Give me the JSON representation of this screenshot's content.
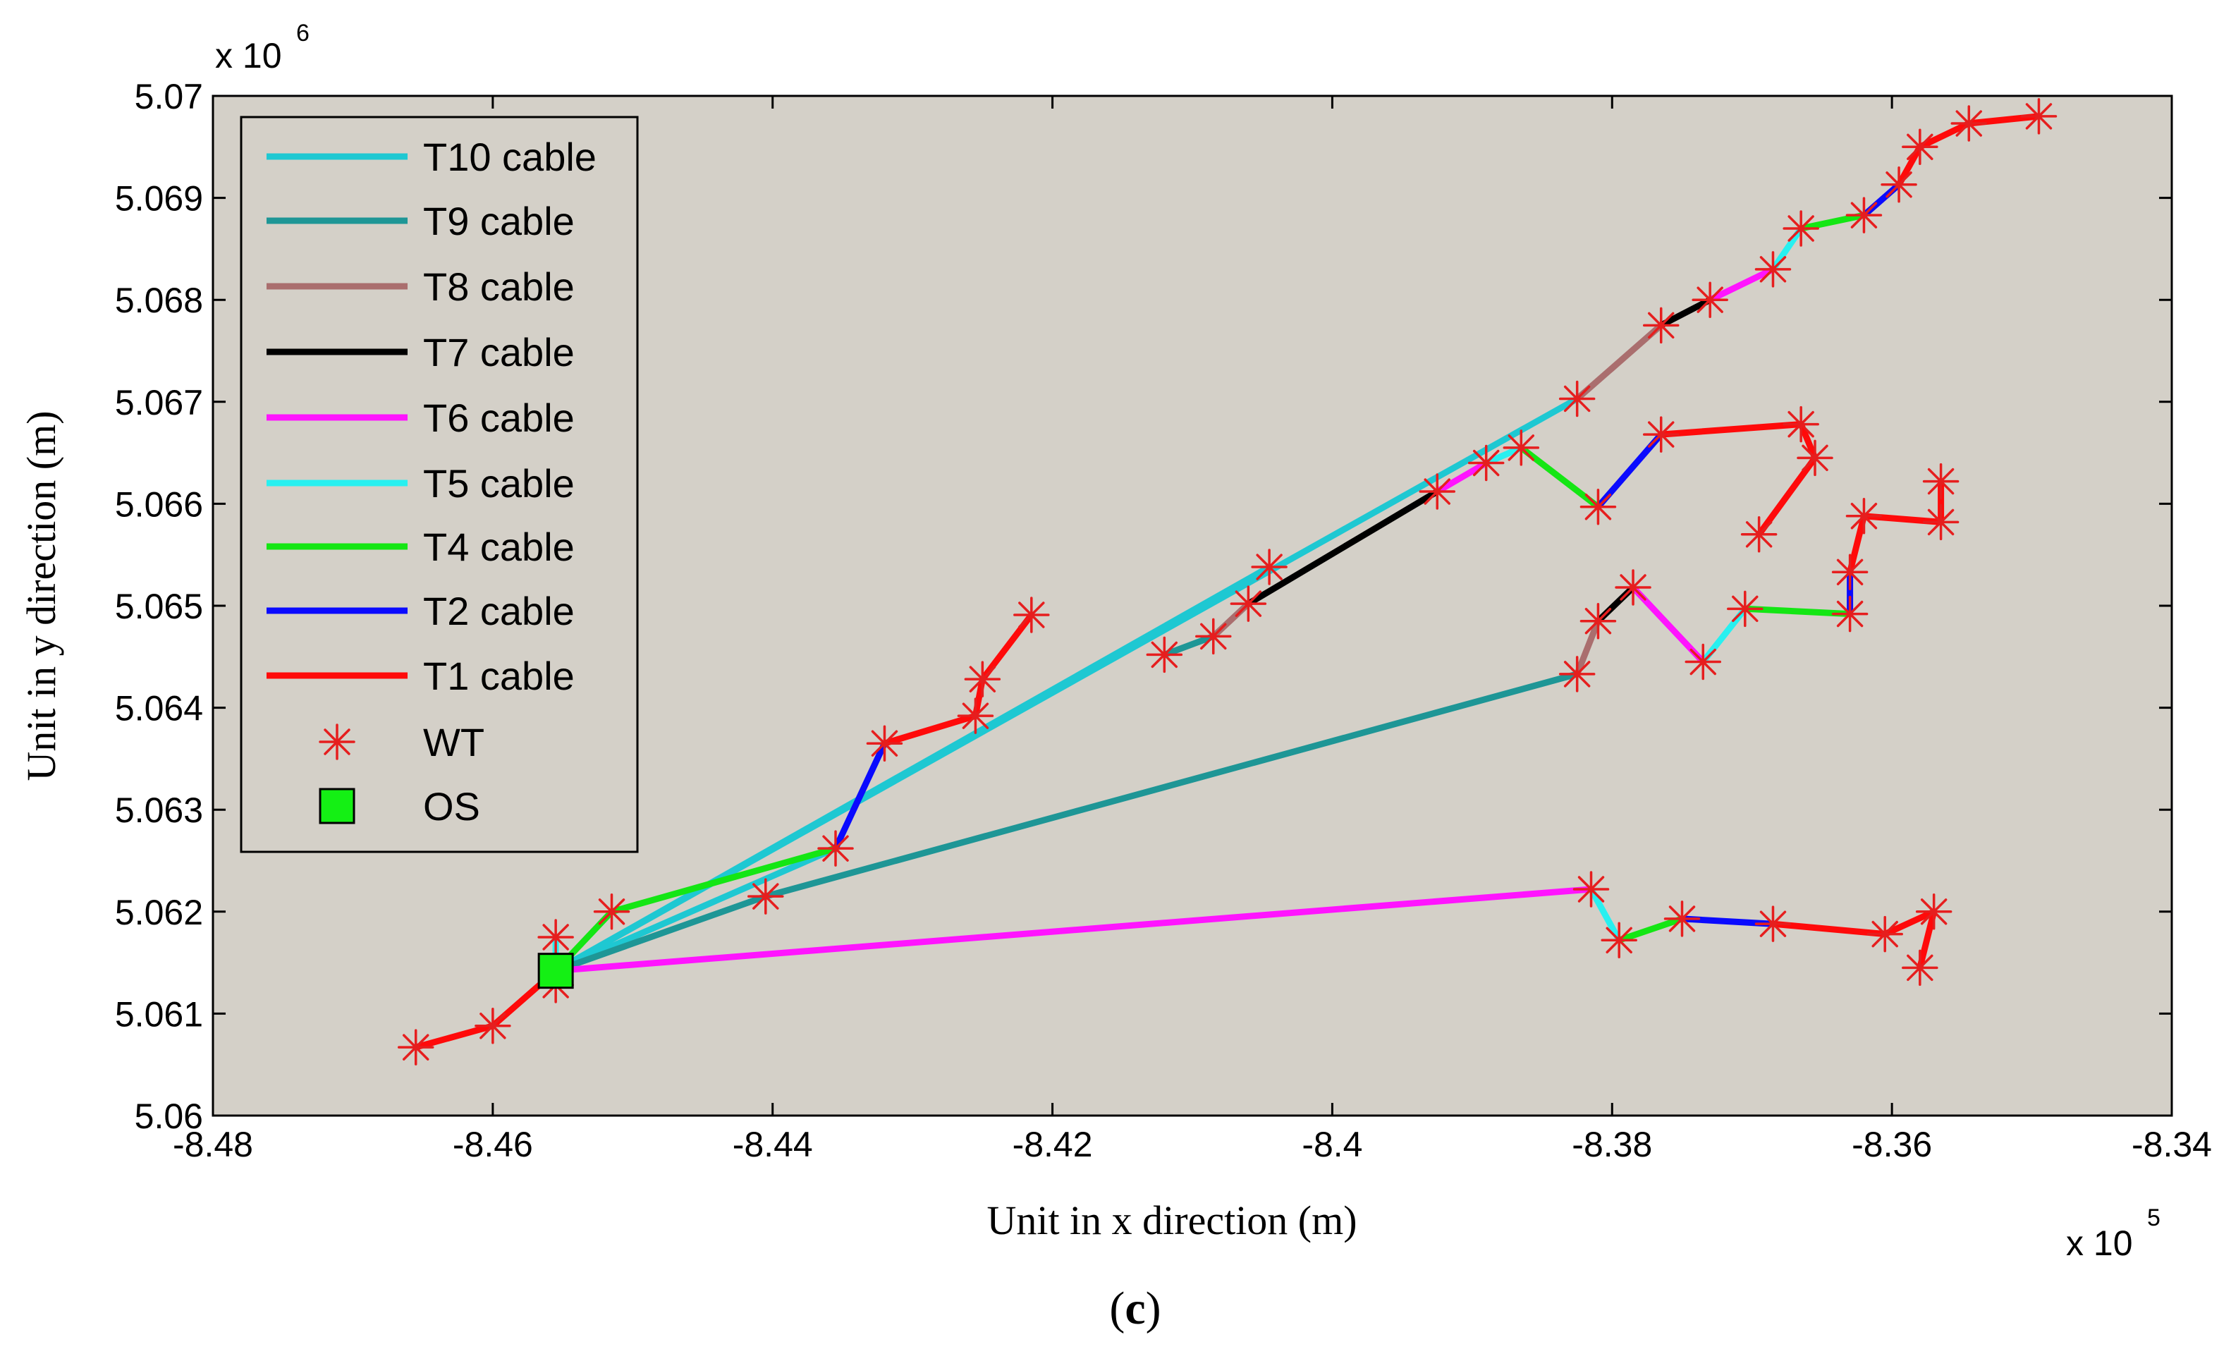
{
  "chart_data": {
    "type": "line",
    "title": "",
    "xlabel": "Unit in x direction (m)",
    "ylabel": "Unit in y direction (m)",
    "x_multiplier": "x 10",
    "x_multiplier_exp": "5",
    "y_multiplier": "x 10",
    "y_multiplier_exp": "6",
    "caption_open": "(",
    "caption_letter": "c",
    "caption_close": ")",
    "xlim": [
      -8.48,
      -8.34
    ],
    "ylim": [
      5.06,
      5.07
    ],
    "xticks": [
      -8.48,
      -8.46,
      -8.44,
      -8.42,
      -8.4,
      -8.38,
      -8.36,
      -8.34
    ],
    "xtick_labels": [
      "-8.48",
      "-8.46",
      "-8.44",
      "-8.42",
      "-8.4",
      "-8.38",
      "-8.36",
      "-8.34"
    ],
    "yticks": [
      5.06,
      5.061,
      5.062,
      5.063,
      5.064,
      5.065,
      5.066,
      5.067,
      5.068,
      5.069,
      5.07
    ],
    "ytick_labels": [
      "5.06",
      "5.061",
      "5.062",
      "5.063",
      "5.064",
      "5.065",
      "5.066",
      "5.067",
      "5.068",
      "5.069",
      "5.07"
    ],
    "grid": false,
    "background": "#d4d0c8",
    "legend_position": "top-left",
    "legend": [
      {
        "label": "T10 cable",
        "color": "#1ec8d2",
        "kind": "line"
      },
      {
        "label": "T9 cable",
        "color": "#1e9696",
        "kind": "line"
      },
      {
        "label": "T8 cable",
        "color": "#aa6e6e",
        "kind": "line"
      },
      {
        "label": "T7 cable",
        "color": "#000000",
        "kind": "line"
      },
      {
        "label": "T6 cable",
        "color": "#ff14ff",
        "kind": "line"
      },
      {
        "label": "T5 cable",
        "color": "#28f0f0",
        "kind": "line"
      },
      {
        "label": "T4 cable",
        "color": "#14e614",
        "kind": "line"
      },
      {
        "label": "T2 cable",
        "color": "#0a0aff",
        "kind": "line"
      },
      {
        "label": "T1 cable",
        "color": "#ff0a0a",
        "kind": "line"
      },
      {
        "label": "WT",
        "color": "#e61e1e",
        "kind": "star"
      },
      {
        "label": "OS",
        "color": "#14f014",
        "kind": "square"
      }
    ],
    "series": [
      {
        "name": "T10 cable",
        "color": "#1ec8d2",
        "segments": [
          [
            [
              -8.4555,
              5.06142
            ],
            [
              -8.4355,
              5.06262
            ]
          ],
          [
            [
              -8.4555,
              5.06142
            ],
            [
              -8.4045,
              5.06538
            ]
          ],
          [
            [
              -8.4555,
              5.06142
            ],
            [
              -8.3825,
              5.06703
            ]
          ]
        ]
      },
      {
        "name": "T9 cable",
        "color": "#1e9696",
        "segments": [
          [
            [
              -8.4555,
              5.06142
            ],
            [
              -8.4405,
              5.06215
            ]
          ],
          [
            [
              -8.4405,
              5.06215
            ],
            [
              -8.3825,
              5.06433
            ]
          ],
          [
            [
              -8.412,
              5.06452
            ],
            [
              -8.4085,
              5.0647
            ]
          ]
        ]
      },
      {
        "name": "T8 cable",
        "color": "#aa6e6e",
        "segments": [
          [
            [
              -8.3825,
              5.06703
            ],
            [
              -8.3765,
              5.06775
            ]
          ],
          [
            [
              -8.3825,
              5.06433
            ],
            [
              -8.381,
              5.06485
            ]
          ],
          [
            [
              -8.4085,
              5.0647
            ],
            [
              -8.406,
              5.06502
            ]
          ]
        ]
      },
      {
        "name": "T7 cable",
        "color": "#000000",
        "segments": [
          [
            [
              -8.406,
              5.06502
            ],
            [
              -8.3925,
              5.06612
            ]
          ],
          [
            [
              -8.3765,
              5.06775
            ],
            [
              -8.373,
              5.068
            ]
          ],
          [
            [
              -8.381,
              5.06485
            ],
            [
              -8.3785,
              5.06518
            ]
          ]
        ]
      },
      {
        "name": "T6 cable",
        "color": "#ff14ff",
        "segments": [
          [
            [
              -8.4555,
              5.06142
            ],
            [
              -8.3815,
              5.06222
            ]
          ],
          [
            [
              -8.3925,
              5.06612
            ],
            [
              -8.389,
              5.0664
            ]
          ],
          [
            [
              -8.373,
              5.068
            ],
            [
              -8.3685,
              5.0683
            ]
          ],
          [
            [
              -8.3785,
              5.06518
            ],
            [
              -8.3735,
              5.06445
            ]
          ]
        ]
      },
      {
        "name": "T5 cable",
        "color": "#28f0f0",
        "segments": [
          [
            [
              -8.4555,
              5.06142
            ],
            [
              -8.4555,
              5.06175
            ]
          ],
          [
            [
              -8.389,
              5.0664
            ],
            [
              -8.3865,
              5.06655
            ]
          ],
          [
            [
              -8.3685,
              5.0683
            ],
            [
              -8.3665,
              5.0687
            ]
          ],
          [
            [
              -8.3735,
              5.06445
            ],
            [
              -8.3705,
              5.06497
            ]
          ],
          [
            [
              -8.3815,
              5.06222
            ],
            [
              -8.3795,
              5.06172
            ]
          ]
        ]
      },
      {
        "name": "T4 cable",
        "color": "#14e614",
        "segments": [
          [
            [
              -8.4555,
              5.06142
            ],
            [
              -8.4515,
              5.062
            ]
          ],
          [
            [
              -8.4515,
              5.062
            ],
            [
              -8.4355,
              5.06262
            ]
          ],
          [
            [
              -8.3865,
              5.06655
            ],
            [
              -8.381,
              5.06597
            ]
          ],
          [
            [
              -8.3665,
              5.0687
            ],
            [
              -8.362,
              5.06883
            ]
          ],
          [
            [
              -8.3705,
              5.06497
            ],
            [
              -8.363,
              5.06492
            ]
          ],
          [
            [
              -8.3795,
              5.06172
            ],
            [
              -8.375,
              5.06193
            ]
          ]
        ]
      },
      {
        "name": "T2 cable",
        "color": "#0a0aff",
        "segments": [
          [
            [
              -8.4355,
              5.06262
            ],
            [
              -8.432,
              5.06365
            ]
          ],
          [
            [
              -8.381,
              5.06597
            ],
            [
              -8.3765,
              5.06668
            ]
          ],
          [
            [
              -8.362,
              5.06883
            ],
            [
              -8.3595,
              5.06913
            ]
          ],
          [
            [
              -8.363,
              5.06492
            ],
            [
              -8.363,
              5.06533
            ]
          ],
          [
            [
              -8.375,
              5.06193
            ],
            [
              -8.3685,
              5.06188
            ]
          ]
        ]
      },
      {
        "name": "T1 cable",
        "color": "#ff0a0a",
        "segments": [
          [
            [
              -8.4555,
              5.06142
            ],
            [
              -8.46,
              5.06088
            ],
            [
              -8.4655,
              5.06067
            ]
          ],
          [
            [
              -8.432,
              5.06365
            ],
            [
              -8.4255,
              5.06392
            ],
            [
              -8.425,
              5.06428
            ],
            [
              -8.4215,
              5.06491
            ]
          ],
          [
            [
              -8.3765,
              5.06668
            ],
            [
              -8.3665,
              5.06678
            ],
            [
              -8.3655,
              5.06645
            ],
            [
              -8.3695,
              5.0657
            ]
          ],
          [
            [
              -8.3595,
              5.06913
            ],
            [
              -8.358,
              5.0695
            ],
            [
              -8.3545,
              5.06973
            ],
            [
              -8.3495,
              5.0698
            ]
          ],
          [
            [
              -8.363,
              5.06533
            ],
            [
              -8.362,
              5.06588
            ],
            [
              -8.3565,
              5.06582
            ],
            [
              -8.3565,
              5.06622
            ]
          ],
          [
            [
              -8.3685,
              5.06188
            ],
            [
              -8.3605,
              5.06178
            ],
            [
              -8.357,
              5.062
            ],
            [
              -8.358,
              5.06145
            ]
          ]
        ]
      }
    ],
    "wind_turbines": [
      [
        -8.4655,
        5.06067
      ],
      [
        -8.46,
        5.06088
      ],
      [
        -8.4555,
        5.06128
      ],
      [
        -8.4555,
        5.06175
      ],
      [
        -8.4515,
        5.062
      ],
      [
        -8.4405,
        5.06215
      ],
      [
        -8.4355,
        5.06262
      ],
      [
        -8.432,
        5.06365
      ],
      [
        -8.4255,
        5.06392
      ],
      [
        -8.425,
        5.06428
      ],
      [
        -8.4215,
        5.06491
      ],
      [
        -8.412,
        5.06452
      ],
      [
        -8.4085,
        5.0647
      ],
      [
        -8.406,
        5.06502
      ],
      [
        -8.4045,
        5.06538
      ],
      [
        -8.3925,
        5.06612
      ],
      [
        -8.389,
        5.0664
      ],
      [
        -8.3865,
        5.06655
      ],
      [
        -8.381,
        5.06597
      ],
      [
        -8.3825,
        5.06703
      ],
      [
        -8.3765,
        5.06775
      ],
      [
        -8.373,
        5.068
      ],
      [
        -8.3685,
        5.0683
      ],
      [
        -8.3665,
        5.0687
      ],
      [
        -8.362,
        5.06883
      ],
      [
        -8.3595,
        5.06913
      ],
      [
        -8.358,
        5.0695
      ],
      [
        -8.3545,
        5.06973
      ],
      [
        -8.3495,
        5.0698
      ],
      [
        -8.3765,
        5.06668
      ],
      [
        -8.3665,
        5.06678
      ],
      [
        -8.3655,
        5.06645
      ],
      [
        -8.3695,
        5.0657
      ],
      [
        -8.3825,
        5.06433
      ],
      [
        -8.381,
        5.06485
      ],
      [
        -8.3785,
        5.06518
      ],
      [
        -8.3735,
        5.06445
      ],
      [
        -8.3705,
        5.06497
      ],
      [
        -8.363,
        5.06492
      ],
      [
        -8.363,
        5.06533
      ],
      [
        -8.362,
        5.06588
      ],
      [
        -8.3565,
        5.06582
      ],
      [
        -8.3565,
        5.06622
      ],
      [
        -8.3815,
        5.06222
      ],
      [
        -8.3795,
        5.06172
      ],
      [
        -8.375,
        5.06193
      ],
      [
        -8.3685,
        5.06188
      ],
      [
        -8.3605,
        5.06178
      ],
      [
        -8.357,
        5.062
      ],
      [
        -8.358,
        5.06145
      ]
    ],
    "offshore_substation": [
      -8.4555,
      5.06142
    ]
  }
}
